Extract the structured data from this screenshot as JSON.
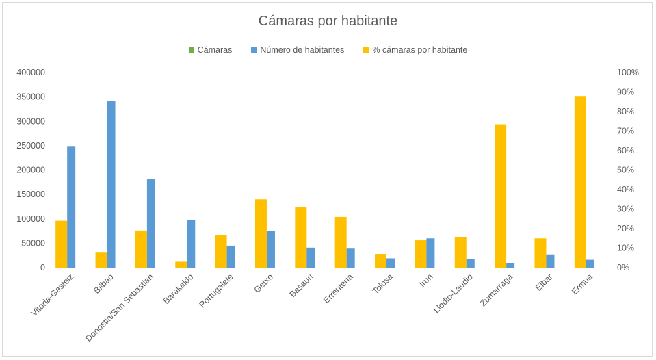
{
  "chart_data": {
    "type": "bar",
    "title": "Cámaras por habitante",
    "categories": [
      "Vitoria-Gasteiz",
      "Bilbao",
      "Donostia/San Sebastian",
      "Barakaldo",
      "Portugalete",
      "Getxo",
      "Basauri",
      "Errenteria",
      "Tolosa",
      "Irun",
      "Llodio-Laudio",
      "Zumarraga",
      "Eibar",
      "Ermua"
    ],
    "series": [
      {
        "name": "Cámaras",
        "axis": "left",
        "color": "#70ad47",
        "values": [
          0,
          0,
          0,
          0,
          0,
          0,
          0,
          0,
          0,
          0,
          0,
          0,
          0,
          0
        ]
      },
      {
        "name": "Número de habitantes",
        "axis": "left",
        "color": "#5b9bd5",
        "values": [
          248000,
          341000,
          181000,
          98000,
          45000,
          75000,
          41000,
          39000,
          19000,
          60000,
          18000,
          9000,
          27000,
          16000
        ]
      },
      {
        "name": "% cámaras por habitante",
        "axis": "right",
        "color": "#ffc000",
        "values": [
          0.24,
          0.08,
          0.19,
          0.03,
          0.165,
          0.35,
          0.31,
          0.26,
          0.07,
          0.14,
          0.155,
          0.735,
          0.15,
          0.88
        ]
      }
    ],
    "y_left": {
      "min": 0,
      "max": 400000,
      "ticks": [
        "0",
        "50000",
        "100000",
        "150000",
        "200000",
        "250000",
        "300000",
        "350000",
        "400000"
      ]
    },
    "y_right": {
      "min": 0,
      "max": 1,
      "ticks": [
        "0%",
        "10%",
        "20%",
        "30%",
        "40%",
        "50%",
        "60%",
        "70%",
        "80%",
        "90%",
        "100%"
      ]
    },
    "grid": false,
    "legend_position": "top"
  }
}
